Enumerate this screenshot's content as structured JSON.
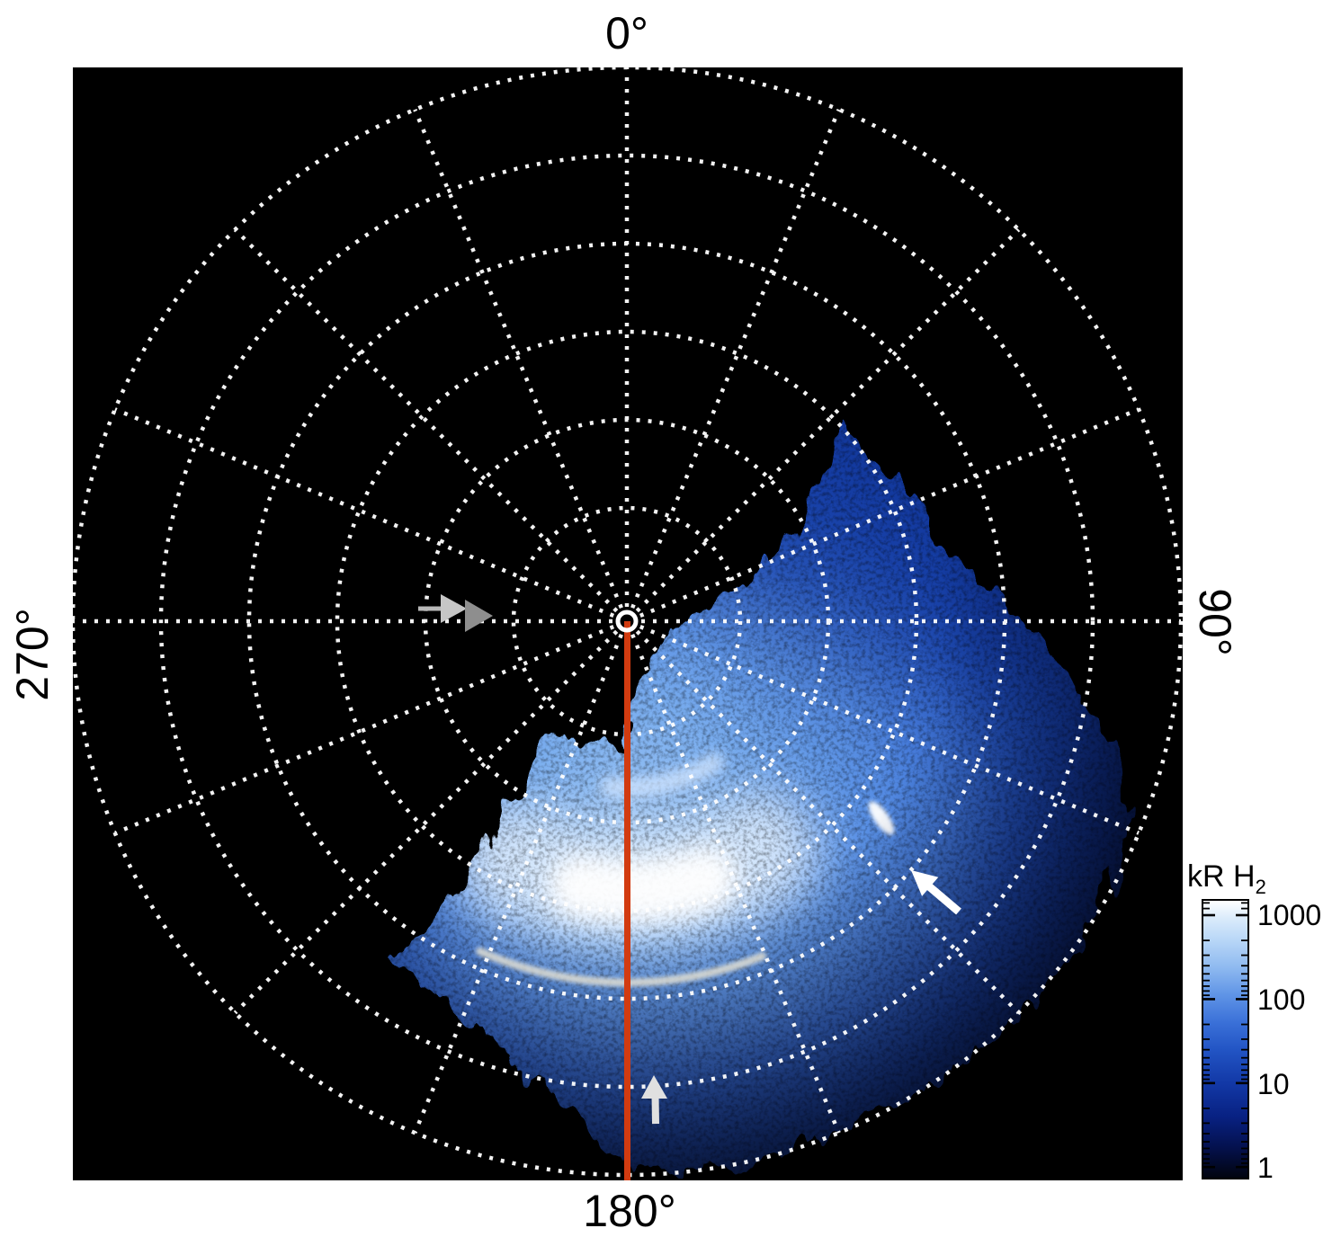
{
  "figure": {
    "angle_labels": {
      "top": "0°",
      "right": "90°",
      "bottom": "180°",
      "left": "270°"
    },
    "colorbar": {
      "title_main": "kR H",
      "title_sub": "2",
      "tick_labels": [
        "1000",
        "100",
        "10",
        "1"
      ],
      "scale": "log"
    },
    "colors": {
      "page_background": "#ffffff",
      "plot_background": "#000000",
      "grid_dots": "#ffffff",
      "meridian_line": "#d23b10",
      "aurora_bright": "#f2f8ff",
      "aurora_mid": "#2a5cd0",
      "aurora_dark": "#071a54"
    }
  },
  "chart_data": {
    "type": "heatmap",
    "projection": "polar",
    "title": "",
    "angular_tick_labels_deg": [
      0,
      90,
      180,
      270
    ],
    "angular_grid_step_deg": 22.5,
    "radial_grid_circles": 6,
    "colorbar": {
      "label": "kR H2",
      "scale": "log",
      "min": 1,
      "max": 1000,
      "tick_values": [
        1000,
        100,
        10,
        1
      ],
      "colormap": "black to blue to white"
    },
    "data_coverage": {
      "azimuth_start_deg": 48,
      "azimuth_end_deg": 215,
      "note": "H2 emission image covers only this azimuth sector; rest of polar disk is black (no data)"
    },
    "features": [
      {
        "name": "main bright auroral arc band",
        "azimuth_deg": [
          145,
          210
        ],
        "radius_frac": [
          0.37,
          0.58
        ],
        "approx_intensity_kR": 1000
      },
      {
        "name": "thin outer arc",
        "azimuth_deg": [
          158,
          204
        ],
        "radius_frac": 0.65,
        "approx_intensity_kR": 300
      },
      {
        "name": "small bright spot",
        "azimuth_deg": 128,
        "radius_frac": 0.58,
        "approx_intensity_kR": 800
      },
      {
        "name": "diffuse speckled emission",
        "azimuth_deg": [
          48,
          215
        ],
        "radius_frac": [
          0.05,
          1.0
        ],
        "approx_intensity_kR": 30
      }
    ],
    "annotations": [
      {
        "type": "meridian line",
        "angle_deg": 180,
        "color": "#d23b10"
      },
      {
        "type": "double gray arrowheads pointing right",
        "position": "on 270 deg axis left of pole"
      },
      {
        "type": "white arrow pointing up-left",
        "position": "at bright spot, azimuth ~128 deg"
      },
      {
        "type": "white arrow pointing up",
        "position": "near 180 deg meridian at outer radius"
      }
    ]
  }
}
